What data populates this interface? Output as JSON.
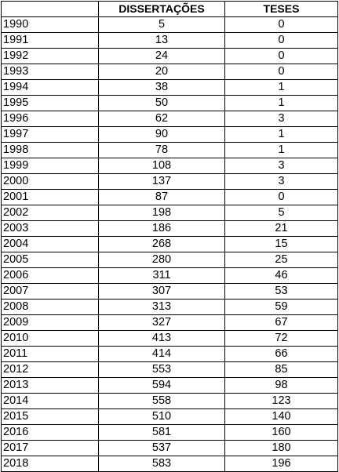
{
  "table": {
    "headers": {
      "year": "",
      "dissertacoes": "DISSERTAÇÕES",
      "teses": "TESES"
    },
    "rows": [
      {
        "year": "1990",
        "dissertacoes": "5",
        "teses": "0"
      },
      {
        "year": "1991",
        "dissertacoes": "13",
        "teses": "0"
      },
      {
        "year": "1992",
        "dissertacoes": "24",
        "teses": "0"
      },
      {
        "year": "1993",
        "dissertacoes": "20",
        "teses": "0"
      },
      {
        "year": "1994",
        "dissertacoes": "38",
        "teses": "1"
      },
      {
        "year": "1995",
        "dissertacoes": "50",
        "teses": "1"
      },
      {
        "year": "1996",
        "dissertacoes": "62",
        "teses": "3"
      },
      {
        "year": "1997",
        "dissertacoes": "90",
        "teses": "1"
      },
      {
        "year": "1998",
        "dissertacoes": "78",
        "teses": "1"
      },
      {
        "year": "1999",
        "dissertacoes": "108",
        "teses": "3"
      },
      {
        "year": "2000",
        "dissertacoes": "137",
        "teses": "3"
      },
      {
        "year": "2001",
        "dissertacoes": "87",
        "teses": "0"
      },
      {
        "year": "2002",
        "dissertacoes": "198",
        "teses": "5"
      },
      {
        "year": "2003",
        "dissertacoes": "186",
        "teses": "21"
      },
      {
        "year": "2004",
        "dissertacoes": "268",
        "teses": "15"
      },
      {
        "year": "2005",
        "dissertacoes": "280",
        "teses": "25"
      },
      {
        "year": "2006",
        "dissertacoes": "311",
        "teses": "46"
      },
      {
        "year": "2007",
        "dissertacoes": "307",
        "teses": "53"
      },
      {
        "year": "2008",
        "dissertacoes": "313",
        "teses": "59"
      },
      {
        "year": "2009",
        "dissertacoes": "327",
        "teses": "67"
      },
      {
        "year": "2010",
        "dissertacoes": "413",
        "teses": "72"
      },
      {
        "year": "2011",
        "dissertacoes": "414",
        "teses": "66"
      },
      {
        "year": "2012",
        "dissertacoes": "553",
        "teses": "85"
      },
      {
        "year": "2013",
        "dissertacoes": "594",
        "teses": "98"
      },
      {
        "year": "2014",
        "dissertacoes": "558",
        "teses": "123"
      },
      {
        "year": "2015",
        "dissertacoes": "510",
        "teses": "140"
      },
      {
        "year": "2016",
        "dissertacoes": "581",
        "teses": "160"
      },
      {
        "year": "2017",
        "dissertacoes": "537",
        "teses": "180"
      },
      {
        "year": "2018",
        "dissertacoes": "583",
        "teses": "196"
      }
    ]
  }
}
